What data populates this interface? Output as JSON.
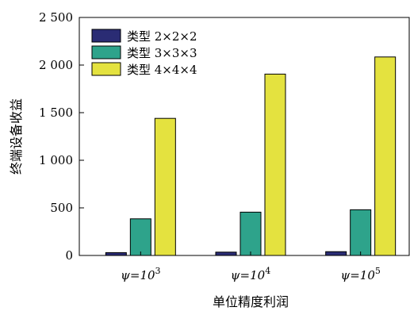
{
  "chart_data": {
    "type": "bar",
    "categories": [
      "ψ=10³",
      "ψ=10⁴",
      "ψ=10⁵"
    ],
    "category_parts": [
      {
        "base": "ψ=10",
        "exp": "3"
      },
      {
        "base": "ψ=10",
        "exp": "4"
      },
      {
        "base": "ψ=10",
        "exp": "5"
      }
    ],
    "series": [
      {
        "name": "类型 2×2×2",
        "values": [
          30,
          35,
          40
        ],
        "color": "#2a2c74"
      },
      {
        "name": "类型 3×3×3",
        "values": [
          385,
          455,
          480
        ],
        "color": "#2ea38b"
      },
      {
        "name": "类型 4×4×4",
        "values": [
          1440,
          1905,
          2085
        ],
        "color": "#e4e23f"
      }
    ],
    "xlabel": "单位精度利润",
    "ylabel": "终端设备收益",
    "ylim": [
      0,
      2500
    ],
    "yticks": [
      0,
      500,
      1000,
      1500,
      2000,
      2500
    ],
    "ytick_labels": [
      "0",
      "500",
      "1 000",
      "1 500",
      "2 000",
      "2 500"
    ],
    "legend_position": "top-left",
    "grid": false
  }
}
